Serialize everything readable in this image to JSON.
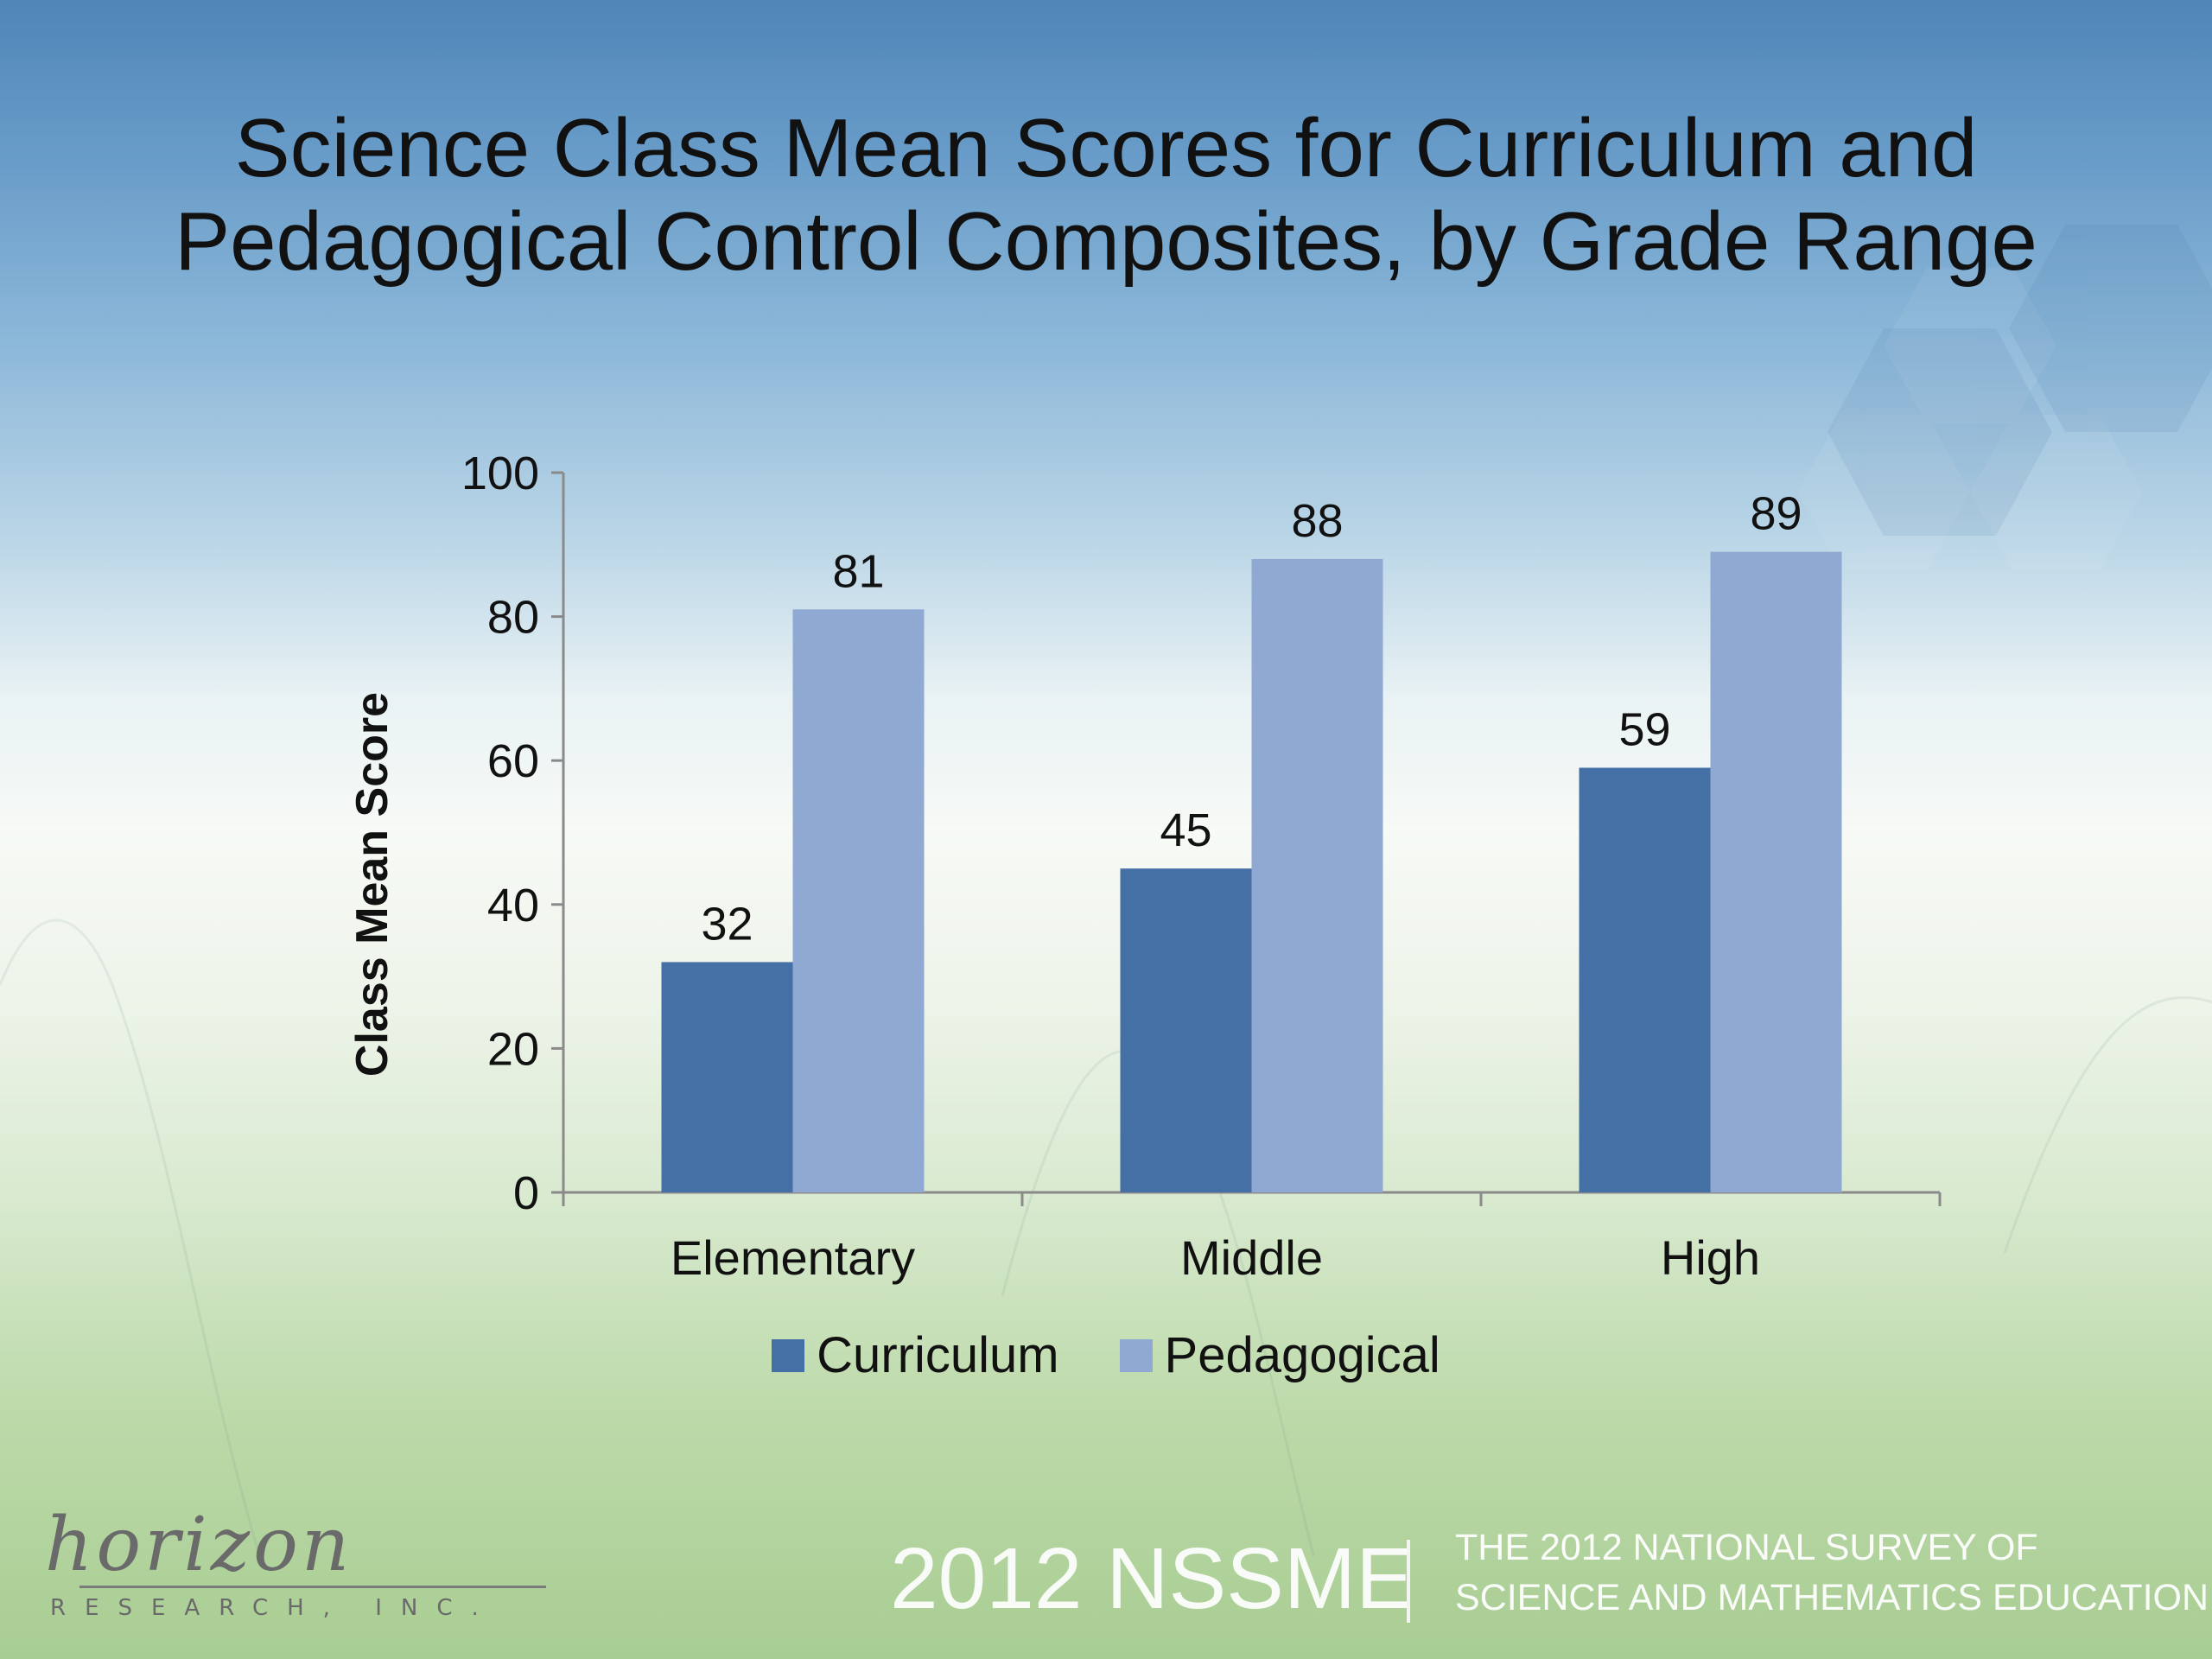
{
  "slide": {
    "title_line1": "Science Class Mean Scores for Curriculum and",
    "title_line2": "Pedagogical Control Composites, by Grade Range"
  },
  "chart_data": {
    "type": "bar",
    "title": "Science Class Mean Scores for Curriculum and Pedagogical Control Composites, by Grade Range",
    "categories": [
      "Elementary",
      "Middle",
      "High"
    ],
    "series": [
      {
        "name": "Curriculum",
        "values": [
          32,
          45,
          59
        ],
        "color": "#4470a6"
      },
      {
        "name": "Pedagogical",
        "values": [
          81,
          88,
          89
        ],
        "color": "#90a9d3"
      }
    ],
    "ylabel": "Class Mean Score",
    "ylim": [
      0,
      100
    ],
    "yticks": [
      0,
      20,
      40,
      60,
      80,
      100
    ],
    "grid": false,
    "legend": "bottom",
    "data_labels": true
  },
  "footer": {
    "logo_text": "horizon",
    "logo_sub": "RESEARCH, INC.",
    "brand": "2012 NSSME",
    "subtitle_line1": "THE 2012 NATIONAL SURVEY OF",
    "subtitle_line2": "SCIENCE AND MATHEMATICS EDUCATION"
  }
}
